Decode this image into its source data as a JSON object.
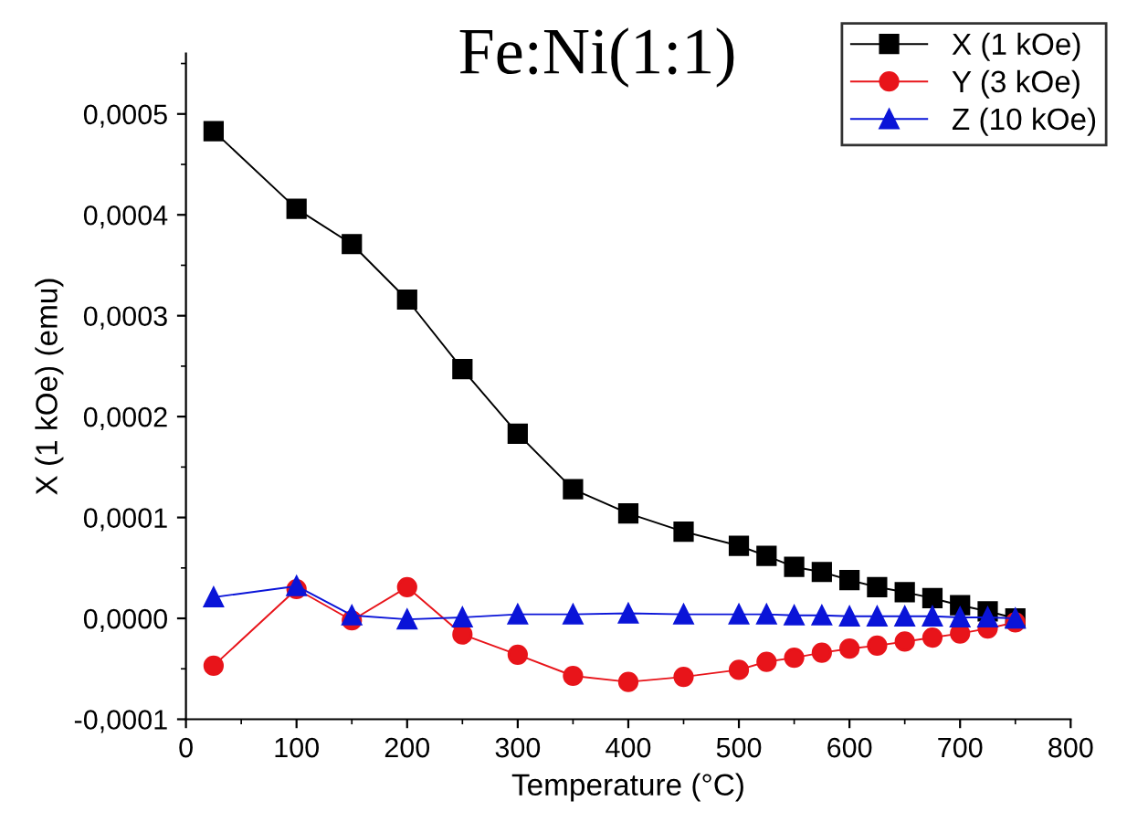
{
  "chart_data": {
    "type": "line",
    "title": "Fe:Ni(1:1)",
    "xlabel": "Temperature (°C)",
    "ylabel": "X (1 kOe) (emu)",
    "x": [
      25,
      100,
      150,
      200,
      250,
      300,
      350,
      400,
      450,
      500,
      525,
      550,
      575,
      600,
      625,
      650,
      675,
      700,
      725,
      750
    ],
    "series": [
      {
        "name": "X (1 kOe)",
        "color": "#000000",
        "marker": "square",
        "values": [
          0.000483,
          0.000406,
          0.000371,
          0.000316,
          0.000247,
          0.000183,
          0.000128,
          0.000104,
          8.6e-05,
          7.2e-05,
          6.2e-05,
          5.1e-05,
          4.6e-05,
          3.8e-05,
          3.1e-05,
          2.6e-05,
          2e-05,
          1.3e-05,
          7e-06,
          0.0
        ]
      },
      {
        "name": "Y (3 kOe)",
        "color": "#e8141a",
        "marker": "circle",
        "values": [
          -4.7e-05,
          2.9e-05,
          -2e-06,
          3.1e-05,
          -1.6e-05,
          -3.6e-05,
          -5.7e-05,
          -6.3e-05,
          -5.8e-05,
          -5.1e-05,
          -4.3e-05,
          -3.9e-05,
          -3.4e-05,
          -3e-05,
          -2.7e-05,
          -2.3e-05,
          -1.9e-05,
          -1.5e-05,
          -1e-05,
          -4e-06
        ]
      },
      {
        "name": "Z (10 kOe)",
        "color": "#0a14d8",
        "marker": "triangle",
        "values": [
          2.1e-05,
          3.2e-05,
          3e-06,
          -1e-06,
          1e-06,
          4e-06,
          4e-06,
          5e-06,
          4e-06,
          4e-06,
          4e-06,
          3e-06,
          3e-06,
          2e-06,
          2e-06,
          2e-06,
          2e-06,
          1e-06,
          1e-06,
          0.0
        ]
      }
    ],
    "xlim": [
      0,
      800
    ],
    "xticks": [
      0,
      100,
      200,
      300,
      400,
      500,
      600,
      700,
      800
    ],
    "ylim": [
      -0.0001,
      0.00056
    ],
    "yticks": [
      {
        "value": -0.0001,
        "label": "-0,0001"
      },
      {
        "value": 0.0,
        "label": "0,0000"
      },
      {
        "value": 0.0001,
        "label": "0,0001"
      },
      {
        "value": 0.0002,
        "label": "0,0002"
      },
      {
        "value": 0.0003,
        "label": "0,0003"
      },
      {
        "value": 0.0004,
        "label": "0,0004"
      },
      {
        "value": 0.0005,
        "label": "0,0005"
      }
    ],
    "legend": "top right",
    "grid": false,
    "line_style": "solid"
  }
}
